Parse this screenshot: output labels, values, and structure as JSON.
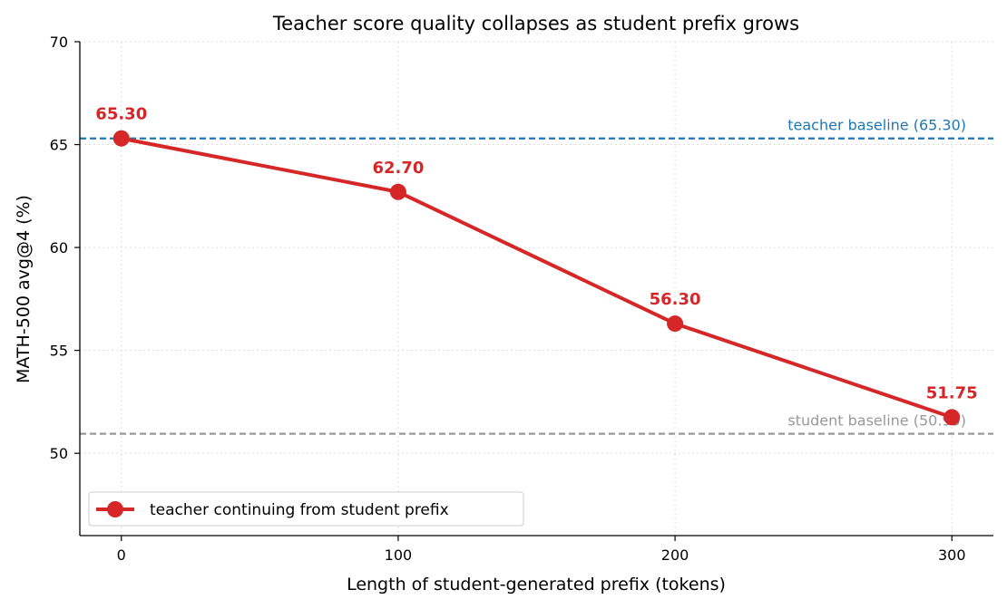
{
  "chart_data": {
    "type": "line",
    "title": "Teacher score quality collapses as student prefix grows",
    "xlabel": "Length of student-generated prefix (tokens)",
    "ylabel": "MATH-500 avg@4 (%)",
    "xlim": [
      -15,
      315
    ],
    "ylim": [
      46,
      70
    ],
    "x_ticks": [
      0,
      100,
      200,
      300
    ],
    "y_ticks": [
      50,
      55,
      60,
      65,
      70
    ],
    "grid": true,
    "legend_position": "lower-left",
    "series": [
      {
        "name": "teacher continuing from student prefix",
        "color": "#d62728",
        "x": [
          0,
          100,
          200,
          300
        ],
        "y": [
          65.3,
          62.7,
          56.3,
          51.75
        ],
        "labels": [
          "65.30",
          "62.70",
          "56.30",
          "51.75"
        ]
      }
    ],
    "reference_lines": [
      {
        "label": "teacher baseline (65.30)",
        "y": 65.3,
        "color": "#1f77b4"
      },
      {
        "label": "student baseline (50.95)",
        "y": 50.95,
        "color": "#999999"
      }
    ]
  }
}
